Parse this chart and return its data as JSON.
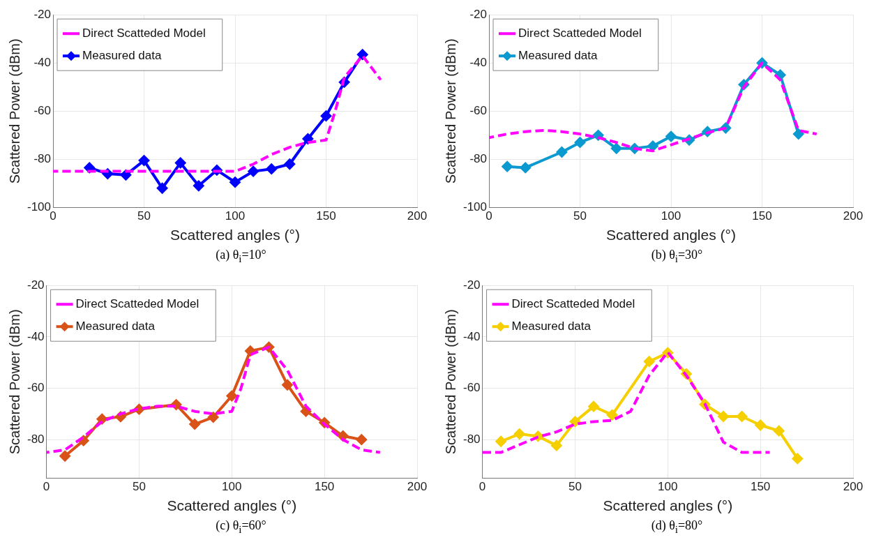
{
  "chart_data": [
    {
      "type": "line",
      "xlabel": "Scattered angles (°)",
      "ylabel": "Scattered Power (dBm)",
      "annotations": [
        "(a) θ$_{i}$=10°"
      ],
      "xlim": [
        0,
        200
      ],
      "xticks": [
        0,
        50,
        100,
        150,
        200
      ],
      "ylim": [
        -100,
        -20
      ],
      "yticks": [
        -100,
        -80,
        -60,
        -40,
        -20
      ],
      "grid": true,
      "legend": "top left",
      "series": [
        {
          "name": "Direct Scatteded Model",
          "color": "#ff00ff",
          "line_style": "dashed",
          "marker": "none",
          "x": [
            0,
            100,
            110,
            120,
            130,
            140,
            150,
            155,
            160,
            170,
            180
          ],
          "values": [
            -85,
            -85,
            -82,
            -78,
            -75,
            -73,
            -72,
            -60,
            -46,
            -37,
            -47
          ]
        },
        {
          "name": "Measured data",
          "color": "#0000ff",
          "line_style": "solid",
          "marker": "diamond",
          "x": [
            20,
            30,
            40,
            50,
            60,
            70,
            80,
            90,
            100,
            110,
            120,
            130,
            140,
            150,
            160,
            170
          ],
          "values": [
            -83.5,
            -86,
            -86.5,
            -80.5,
            -92,
            -81.5,
            -91,
            -84.5,
            -89.5,
            -85,
            -84,
            -82,
            -71.5,
            -62,
            -48,
            -36.5
          ]
        }
      ]
    },
    {
      "type": "line",
      "xlabel": "Scattered angles (°)",
      "ylabel": "Scattered Power (dBm)",
      "annotations": [
        "(b) θ$_{i}$=30°"
      ],
      "xlim": [
        0,
        200
      ],
      "xticks": [
        0,
        50,
        100,
        150,
        200
      ],
      "ylim": [
        -100,
        -20
      ],
      "yticks": [
        -100,
        -80,
        -60,
        -40,
        -20
      ],
      "grid": true,
      "legend": "top left",
      "series": [
        {
          "name": "Direct Scatteded Model",
          "color": "#ff00ff",
          "line_style": "dashed",
          "marker": "none",
          "x": [
            0,
            10,
            20,
            30,
            40,
            50,
            60,
            70,
            80,
            90,
            100,
            110,
            120,
            130,
            140,
            150,
            160,
            170,
            180
          ],
          "values": [
            -71,
            -69.5,
            -68.5,
            -68,
            -68.5,
            -69.5,
            -71,
            -73,
            -75.5,
            -76.5,
            -74,
            -71.5,
            -69,
            -67,
            -50,
            -40,
            -47,
            -68,
            -69.5
          ]
        },
        {
          "name": "Measured data",
          "color": "#0b9ad0",
          "line_style": "solid",
          "marker": "diamond",
          "x": [
            10,
            20,
            40,
            50,
            60,
            70,
            80,
            90,
            100,
            110,
            120,
            130,
            140,
            150,
            160,
            170
          ],
          "values": [
            -83,
            -83.5,
            -77,
            -73,
            -70,
            -75.5,
            -75.5,
            -74.5,
            -70.5,
            -72,
            -68.5,
            -67,
            -49,
            -40,
            -45,
            -69.5
          ]
        }
      ]
    },
    {
      "type": "line",
      "xlabel": "Scattered angles (°)",
      "ylabel": "Scattered Power (dBm)",
      "annotations": [
        "(c) θ$_{i}$=60°"
      ],
      "xlim": [
        0,
        200
      ],
      "xticks": [
        0,
        50,
        100,
        150,
        200
      ],
      "ylim": [
        -95,
        -20
      ],
      "yticks": [
        -80,
        -60,
        -40,
        -20
      ],
      "grid": true,
      "legend": "top left",
      "series": [
        {
          "name": "Direct Scatteded Model",
          "color": "#ff00ff",
          "line_style": "dashed",
          "marker": "none",
          "x": [
            0,
            10,
            20,
            30,
            40,
            50,
            60,
            70,
            80,
            90,
            100,
            105,
            110,
            120,
            130,
            140,
            150,
            160,
            170,
            180
          ],
          "values": [
            -85,
            -84,
            -79,
            -73,
            -70,
            -68,
            -67,
            -67,
            -69,
            -70,
            -69,
            -60,
            -47,
            -44,
            -53,
            -67,
            -74,
            -80,
            -84,
            -85
          ]
        },
        {
          "name": "Measured data",
          "color": "#d95319",
          "line_style": "solid",
          "marker": "diamond",
          "x": [
            10,
            20,
            30,
            40,
            50,
            70,
            80,
            90,
            100,
            110,
            120,
            130,
            140,
            150,
            160,
            170
          ],
          "values": [
            -86.4,
            -80.4,
            -72,
            -71.1,
            -68.2,
            -66.4,
            -74,
            -71.3,
            -63,
            -45.5,
            -44,
            -58.7,
            -69,
            -73.4,
            -78.6,
            -80
          ]
        }
      ]
    },
    {
      "type": "line",
      "xlabel": "Scattered angles (°)",
      "ylabel": "Scattered Power (dBm)",
      "annotations": [
        "(d) θ$_{i}$=80°"
      ],
      "xlim": [
        0,
        200
      ],
      "xticks": [
        0,
        50,
        100,
        150,
        200
      ],
      "ylim": [
        -95,
        -20
      ],
      "yticks": [
        -80,
        -60,
        -40,
        -20
      ],
      "grid": true,
      "legend": "top left",
      "series": [
        {
          "name": "Direct Scatteded Model",
          "color": "#ff00ff",
          "line_style": "dashed",
          "marker": "none",
          "x": [
            0,
            10,
            20,
            30,
            40,
            50,
            60,
            70,
            80,
            90,
            100,
            110,
            120,
            130,
            140,
            150,
            155
          ],
          "values": [
            -85,
            -85,
            -82,
            -79,
            -77,
            -74,
            -73,
            -72.5,
            -69,
            -55,
            -46,
            -55,
            -66,
            -81,
            -85,
            -85,
            -85
          ]
        },
        {
          "name": "Measured data",
          "color": "#f5cf00",
          "line_style": "solid",
          "marker": "diamond",
          "x": [
            10,
            20,
            30,
            40,
            50,
            60,
            70,
            90,
            100,
            110,
            120,
            130,
            140,
            150,
            160,
            170
          ],
          "values": [
            -80.7,
            -77.8,
            -78.7,
            -82.3,
            -73,
            -67.1,
            -70.4,
            -49.6,
            -46.2,
            -54.4,
            -66.3,
            -71,
            -71,
            -74.4,
            -76.6,
            -87.4
          ]
        }
      ]
    }
  ]
}
